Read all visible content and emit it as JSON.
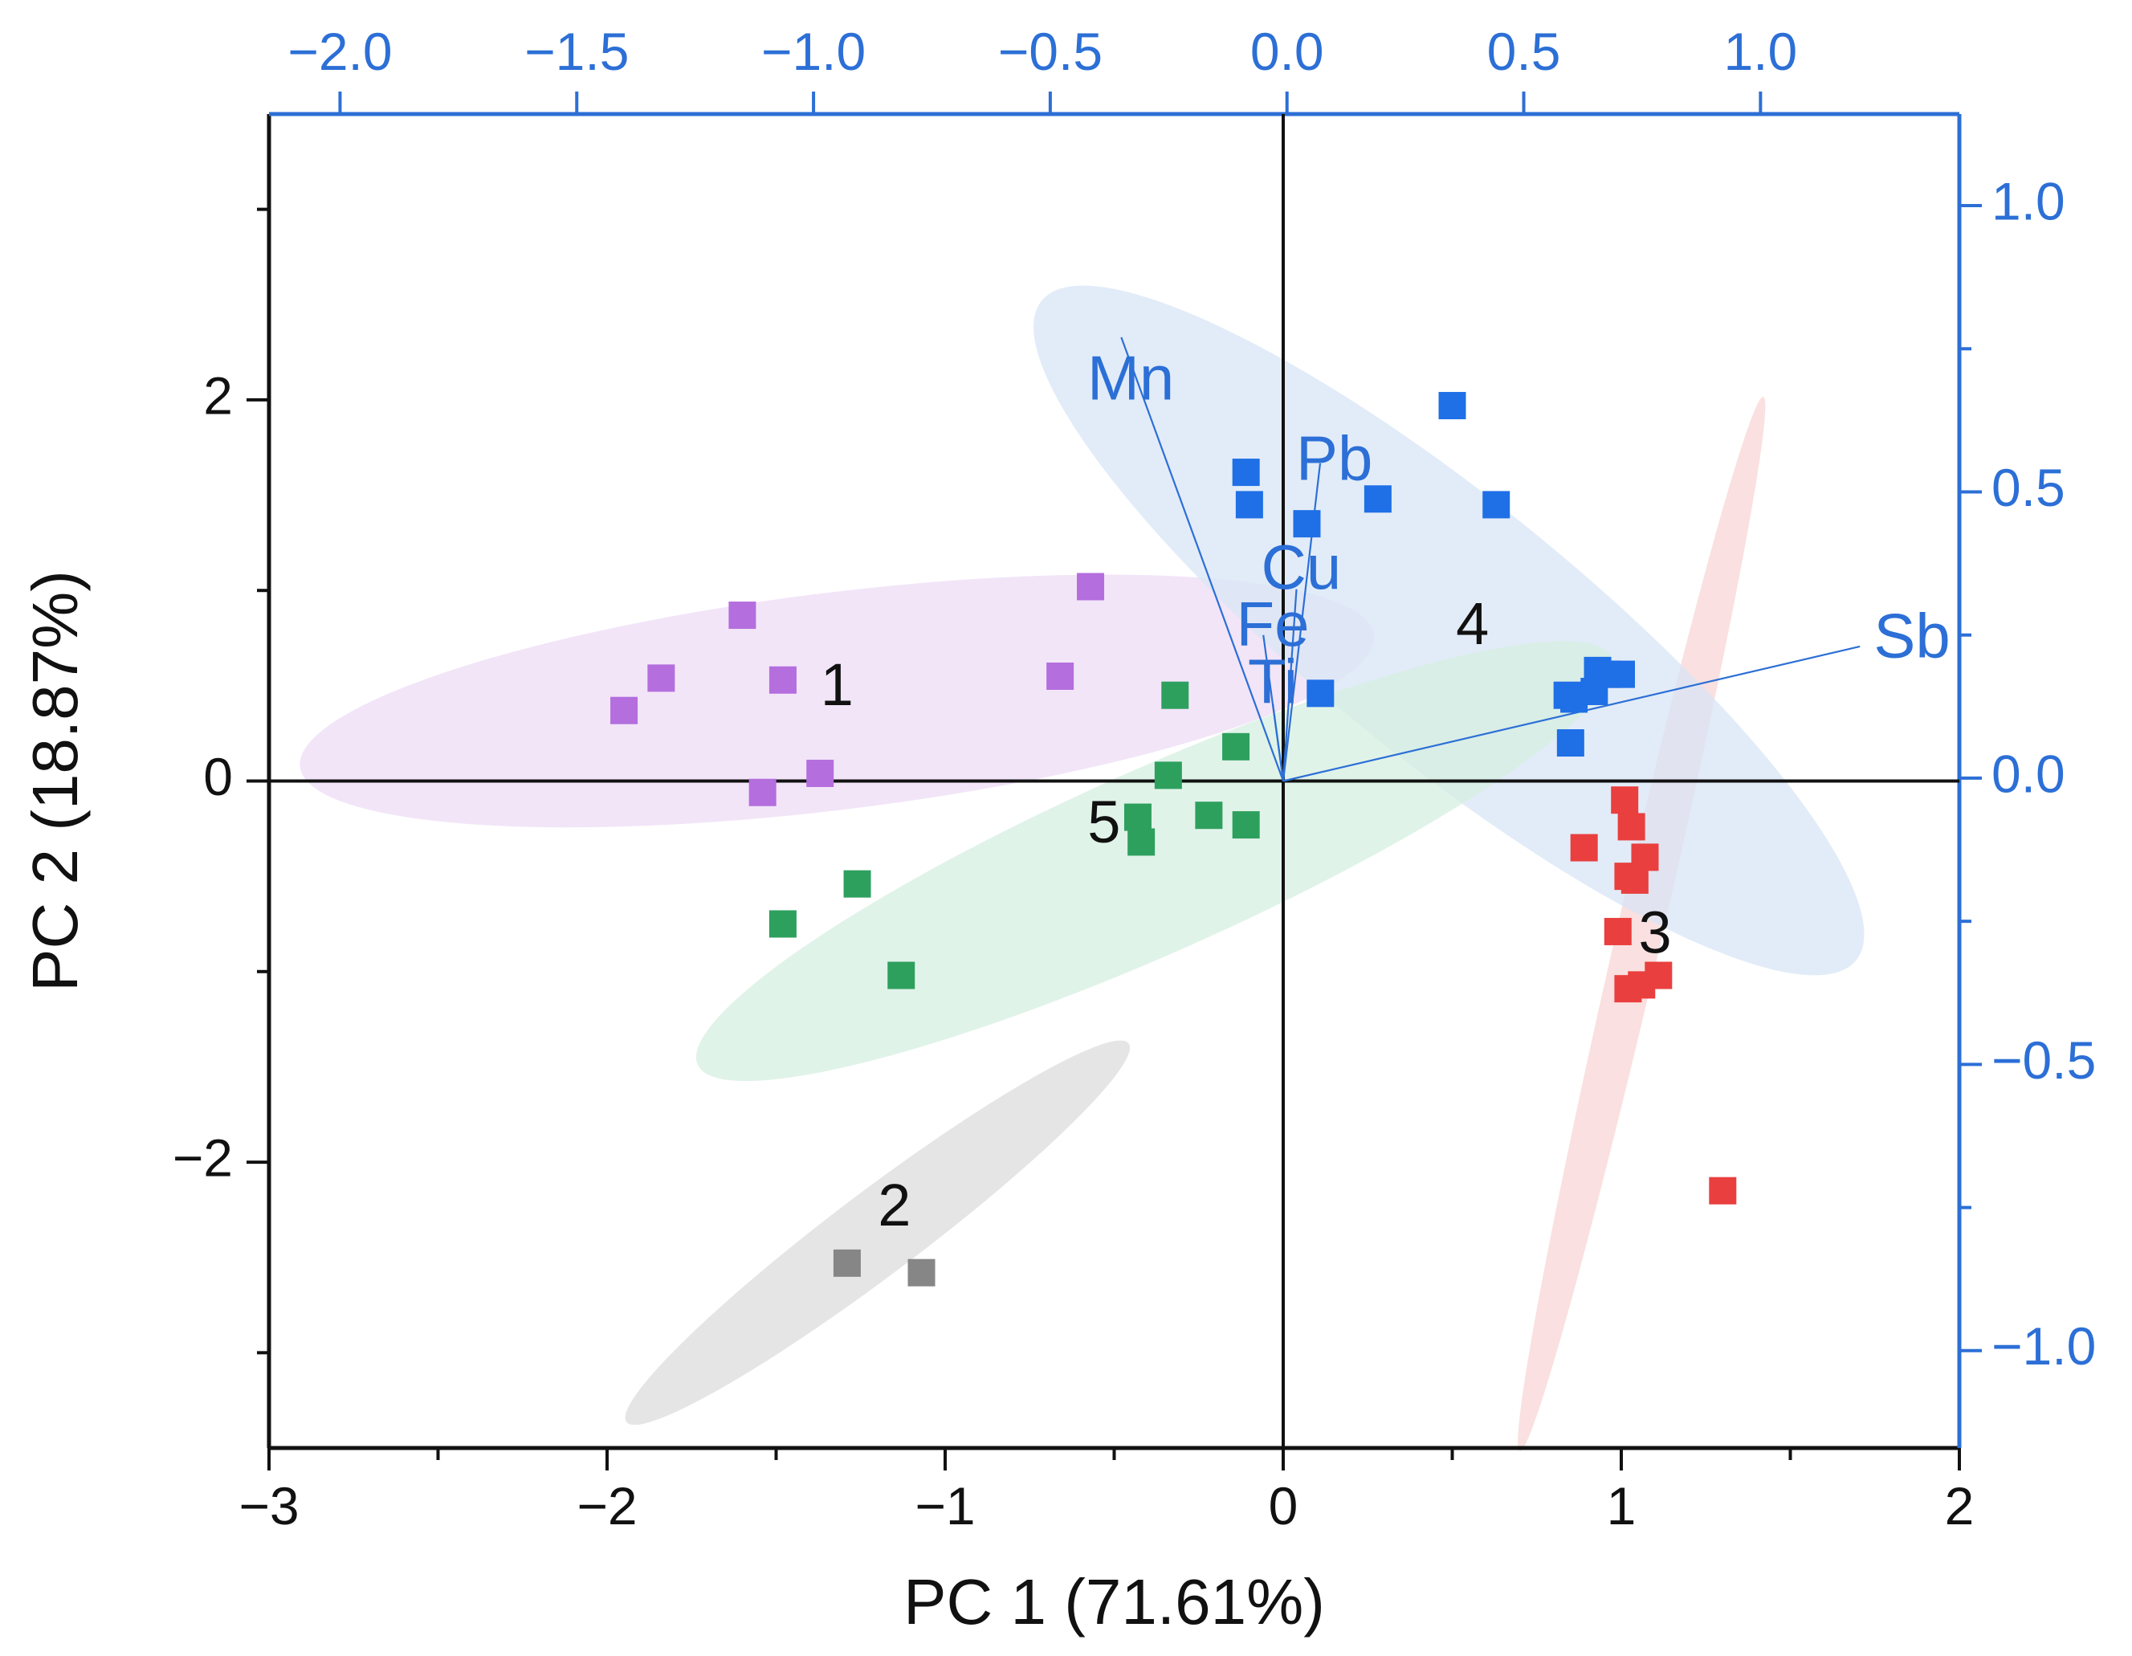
{
  "chart_data": {
    "type": "scatter",
    "subtype": "pca-biplot",
    "xlabel": "PC 1 (71.61%)",
    "ylabel": "PC 2 (18.87%)",
    "xlim": [
      -3,
      2
    ],
    "ylim": [
      -3.5,
      3.5
    ],
    "x_ticks": [
      -3,
      -2,
      -1,
      0,
      1,
      2
    ],
    "y_ticks": [
      -2,
      0,
      2
    ],
    "x_tick_labels": [
      "−3",
      "−2",
      "−1",
      "0",
      "1",
      "2"
    ],
    "y_tick_labels": [
      "−2",
      "0",
      "2"
    ],
    "top_axis": {
      "lim": [
        -2.15,
        1.42
      ],
      "ticks": [
        -2.0,
        -1.5,
        -1.0,
        -0.5,
        0.0,
        0.5,
        1.0
      ],
      "tick_labels": [
        "−2.0",
        "−1.5",
        "−1.0",
        "−0.5",
        "0.0",
        "0.5",
        "1.0"
      ]
    },
    "right_axis": {
      "lim": [
        -1.17,
        1.16
      ],
      "ticks": [
        -1.0,
        -0.5,
        0.0,
        0.5,
        1.0
      ],
      "tick_labels": [
        "−1.0",
        "−0.5",
        "0.0",
        "0.5",
        "1.0"
      ]
    },
    "colors": {
      "axis_secondary": "#2c6fd6",
      "axis_primary": "#111111",
      "loadings": "#2c6fd6"
    },
    "series": [
      {
        "name": "1",
        "color": "#b46ede",
        "fill": "#eedcf6",
        "ellipse": {
          "cx": -1.32,
          "cy": 0.42,
          "rx": 1.6,
          "ry": 0.57,
          "angle": 7
        },
        "label_pos": [
          -1.32,
          0.48
        ],
        "points": [
          [
            -1.95,
            0.37
          ],
          [
            -1.84,
            0.54
          ],
          [
            -1.6,
            0.87
          ],
          [
            -1.48,
            0.53
          ],
          [
            -1.54,
            -0.06
          ],
          [
            -1.37,
            0.04
          ],
          [
            -0.66,
            0.55
          ],
          [
            -0.57,
            1.02
          ]
        ]
      },
      {
        "name": "2",
        "color": "#868686",
        "fill": "#dcdcdc",
        "ellipse": {
          "cx": -1.2,
          "cy": -2.37,
          "rx": 0.93,
          "ry": 0.22,
          "angle": 37
        },
        "label_pos": [
          -1.15,
          -2.25
        ],
        "points": [
          [
            -1.29,
            -2.53
          ],
          [
            -1.07,
            -2.58
          ]
        ]
      },
      {
        "name": "3",
        "color": "#e93f3f",
        "fill": "#f8d6d6",
        "ellipse": {
          "cx": 1.06,
          "cy": -0.75,
          "rx": 1.6,
          "ry": 0.12,
          "angle": 77
        },
        "label_pos": [
          1.1,
          -0.82
        ],
        "points": [
          [
            1.01,
            -0.1
          ],
          [
            1.03,
            -0.24
          ],
          [
            1.07,
            -0.4
          ],
          [
            1.02,
            -0.5
          ],
          [
            0.89,
            -0.35
          ],
          [
            1.04,
            -0.52
          ],
          [
            0.99,
            -0.79
          ],
          [
            1.02,
            -1.09
          ],
          [
            1.06,
            -1.07
          ],
          [
            1.11,
            -1.02
          ],
          [
            1.3,
            -2.15
          ]
        ]
      },
      {
        "name": "4",
        "color": "#1f6fe6",
        "fill": "#d8e5f6",
        "ellipse": {
          "cx": 0.49,
          "cy": 0.79,
          "rx": 1.55,
          "ry": 0.68,
          "angle": -39
        },
        "label_pos": [
          0.56,
          0.8
        ],
        "points": [
          [
            -0.11,
            1.62
          ],
          [
            -0.1,
            1.45
          ],
          [
            0.07,
            1.35
          ],
          [
            0.28,
            1.48
          ],
          [
            0.5,
            1.97
          ],
          [
            0.63,
            1.45
          ],
          [
            0.11,
            0.46
          ],
          [
            0.84,
            0.45
          ],
          [
            0.86,
            0.43
          ],
          [
            0.92,
            0.47
          ],
          [
            0.93,
            0.58
          ],
          [
            0.96,
            0.56
          ],
          [
            1.0,
            0.56
          ],
          [
            0.85,
            0.2
          ]
        ]
      },
      {
        "name": "5",
        "color": "#2ea05e",
        "fill": "#d6efe2",
        "ellipse": {
          "cx": -0.38,
          "cy": -0.42,
          "rx": 1.48,
          "ry": 0.48,
          "angle": 24
        },
        "label_pos": [
          -0.53,
          -0.24
        ],
        "points": [
          [
            -0.32,
            0.45
          ],
          [
            -0.14,
            0.18
          ],
          [
            -0.34,
            0.03
          ],
          [
            -0.43,
            -0.19
          ],
          [
            -0.22,
            -0.18
          ],
          [
            -0.11,
            -0.23
          ],
          [
            -0.42,
            -0.32
          ],
          [
            -1.26,
            -0.54
          ],
          [
            -1.48,
            -0.75
          ],
          [
            -1.13,
            -1.02
          ]
        ]
      }
    ],
    "loadings": [
      {
        "name": "Mn",
        "x": -0.35,
        "y": 0.77,
        "label_pos": [
          -0.33,
          0.69
        ]
      },
      {
        "name": "Pb",
        "x": 0.07,
        "y": 0.55,
        "label_pos": [
          0.1,
          0.55
        ]
      },
      {
        "name": "Cu",
        "x": 0.02,
        "y": 0.33,
        "label_pos": [
          0.03,
          0.36
        ]
      },
      {
        "name": "Fe",
        "x": -0.05,
        "y": 0.25,
        "label_pos": [
          -0.03,
          0.26
        ]
      },
      {
        "name": "Ti",
        "x": -0.03,
        "y": 0.13,
        "label_pos": [
          -0.03,
          0.16
        ]
      },
      {
        "name": "Sb",
        "x": 1.21,
        "y": 0.23,
        "label_pos": [
          1.32,
          0.24
        ]
      }
    ]
  }
}
